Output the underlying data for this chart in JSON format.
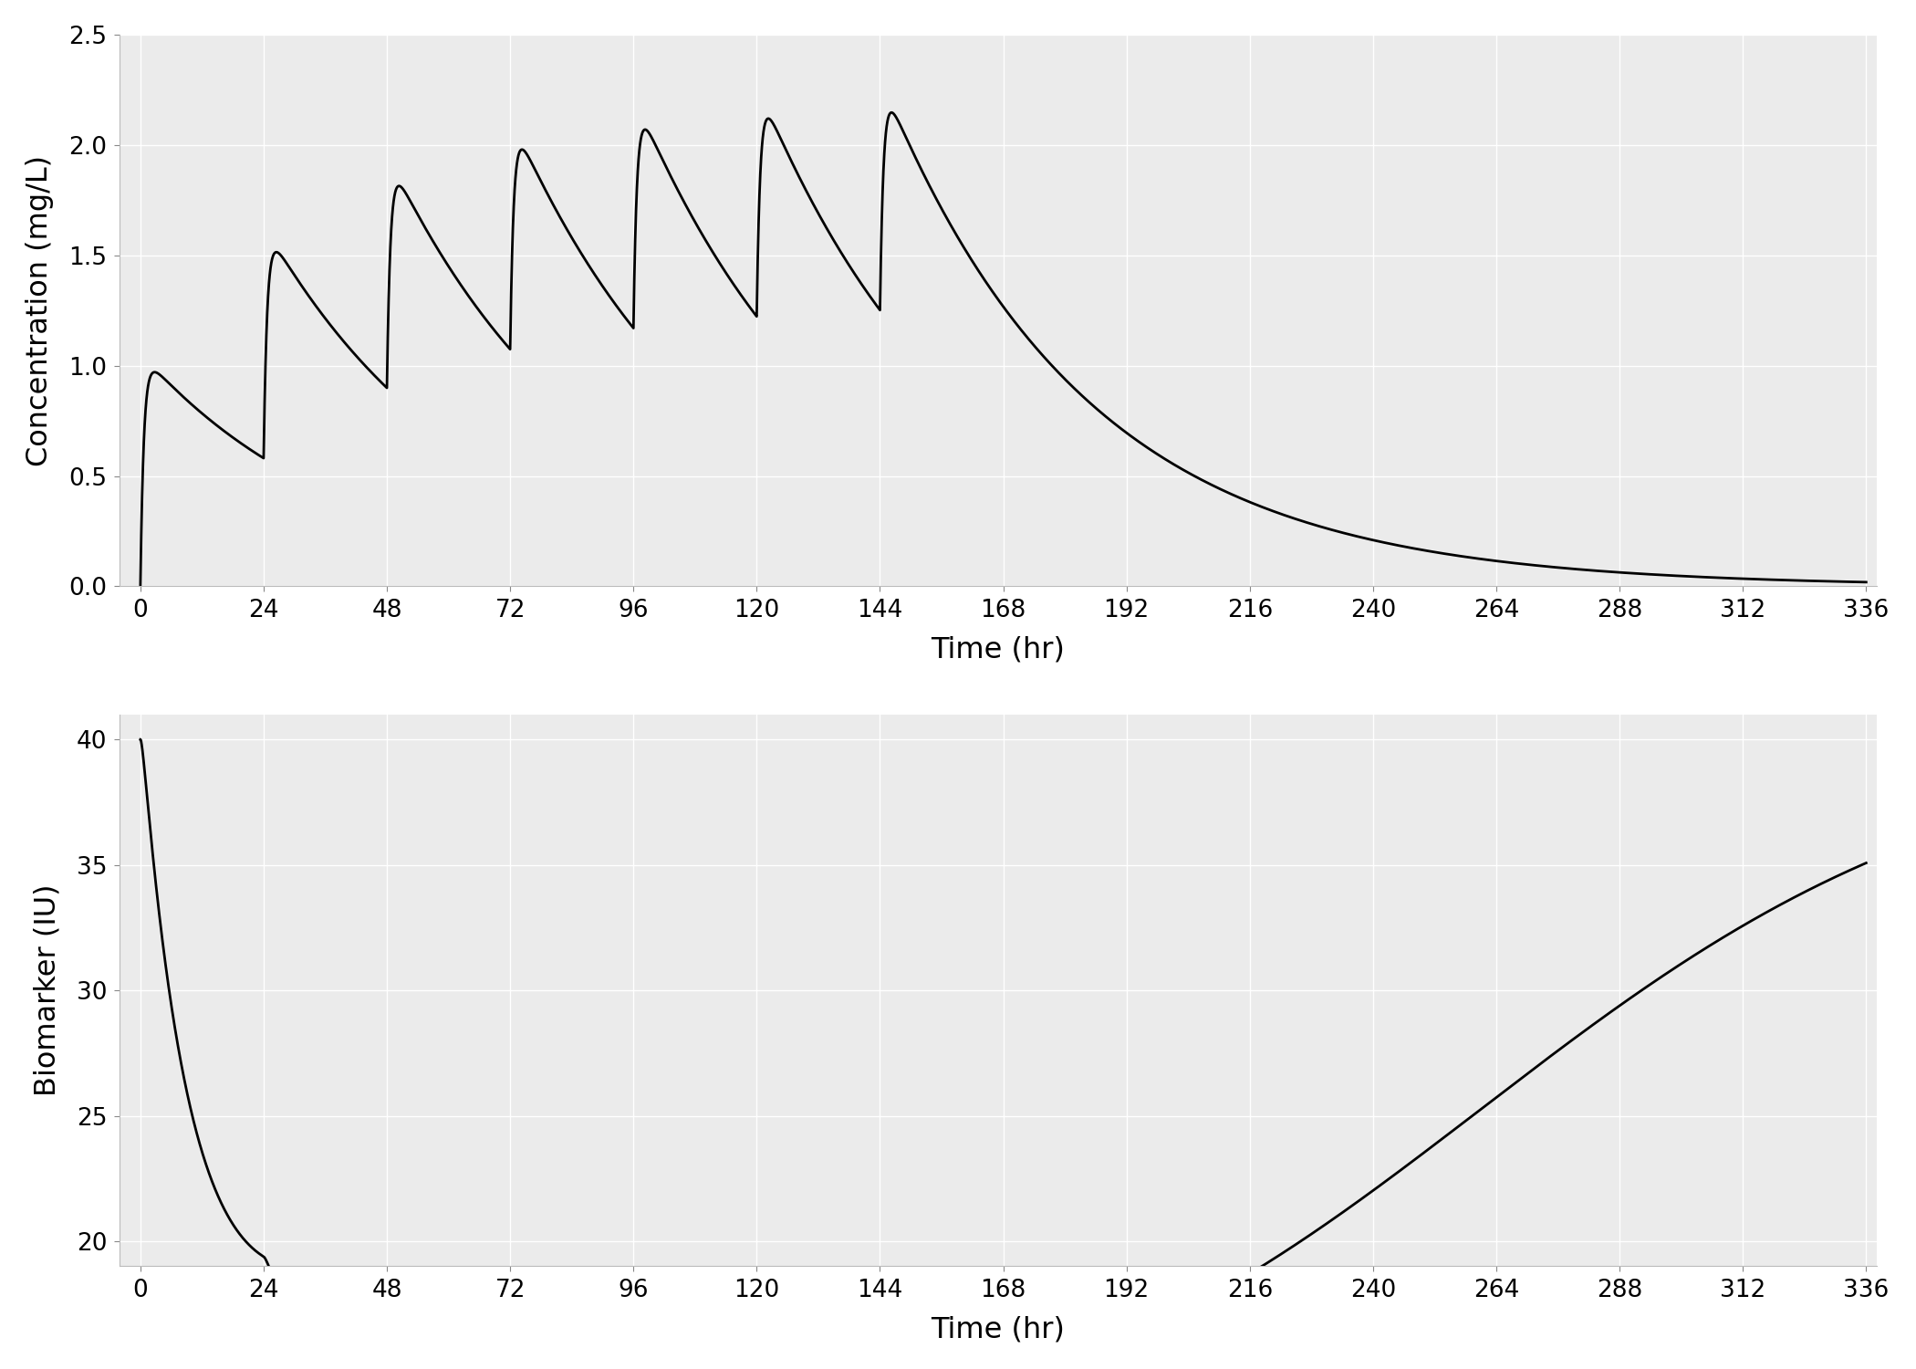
{
  "top_ylabel": "Concentration (mg/L)",
  "bottom_ylabel": "Biomarker (IU)",
  "xlabel": "Time (hr)",
  "conc_ylim": [
    0.0,
    2.5
  ],
  "conc_yticks": [
    0.0,
    0.5,
    1.0,
    1.5,
    2.0,
    2.5
  ],
  "bio_ylim": [
    19,
    41
  ],
  "bio_yticks": [
    20,
    25,
    30,
    35,
    40
  ],
  "xticks": [
    0,
    24,
    48,
    72,
    96,
    120,
    144,
    168,
    192,
    216,
    240,
    264,
    288,
    312,
    336
  ],
  "xlim": [
    -4,
    338
  ],
  "line_color": "#000000",
  "line_width": 2.0,
  "bg_color": "#ffffff",
  "panel_bg": "#ebebeb",
  "grid_color": "#ffffff",
  "grid_linewidth": 1.0,
  "tick_fontsize": 19,
  "label_fontsize": 23
}
